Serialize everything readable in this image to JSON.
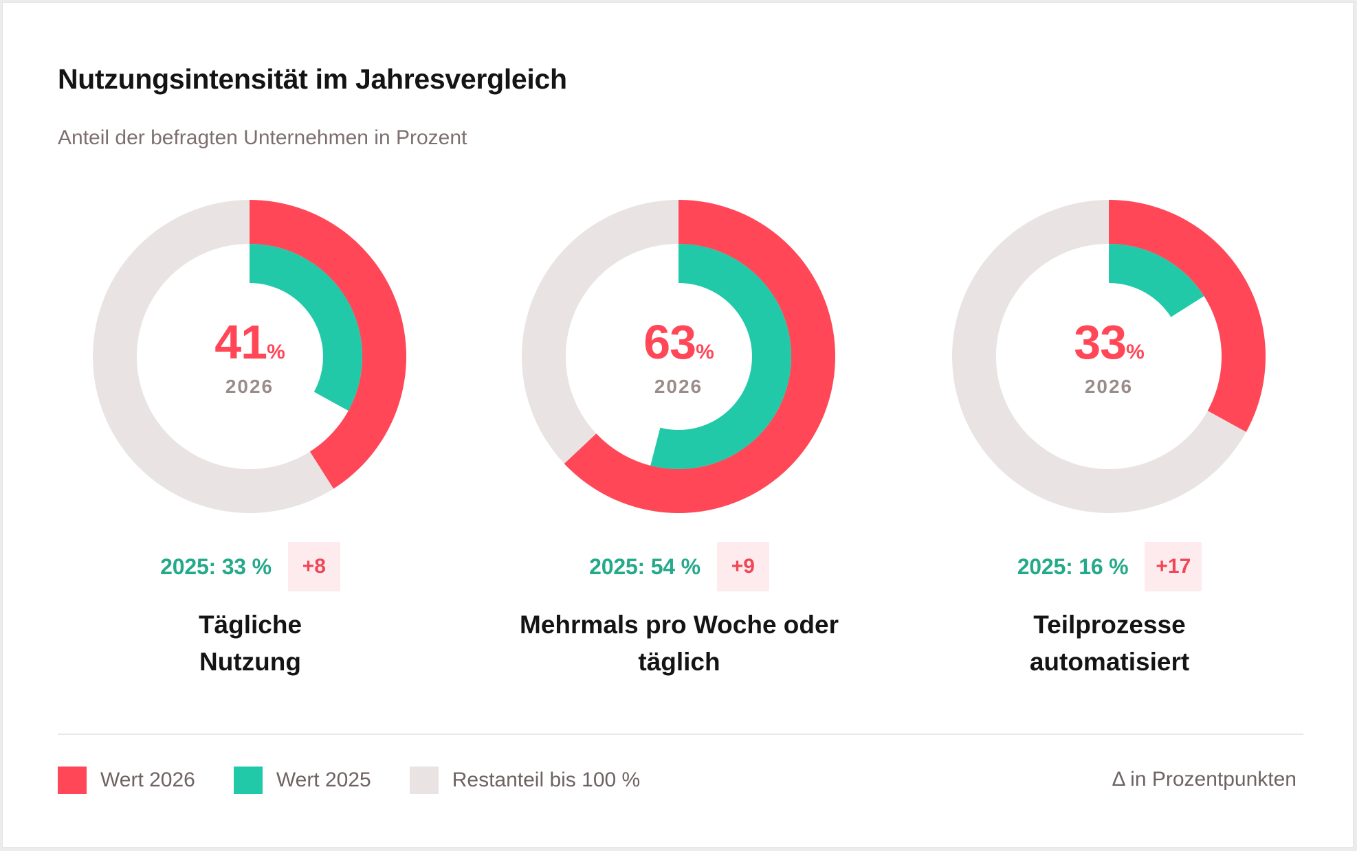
{
  "header": {
    "title": "Nutzungsintensität im Jahresvergleich",
    "subtitle": "Anteil der befragten Unternehmen in Prozent"
  },
  "colors": {
    "value_2026": "#ff4757",
    "value_2025": "#21c9a8",
    "remainder": "#e9e4e3",
    "prev_text": "#24a98a",
    "badge_bg": "#fdebed",
    "badge_text": "#f04656"
  },
  "chart_data": [
    {
      "type": "pie",
      "center_value": "41",
      "center_unit": "%",
      "center_year": "2026",
      "series": [
        {
          "name": "Wert 2026",
          "value": 41
        },
        {
          "name": "Wert 2025",
          "value": 33
        }
      ],
      "prev_label": "2025: 33 %",
      "delta": "+8",
      "category": [
        "Tägliche",
        "Nutzung"
      ]
    },
    {
      "type": "pie",
      "center_value": "63",
      "center_unit": "%",
      "center_year": "2026",
      "series": [
        {
          "name": "Wert 2026",
          "value": 63
        },
        {
          "name": "Wert 2025",
          "value": 54
        }
      ],
      "prev_label": "2025: 54 %",
      "delta": "+9",
      "category": [
        "Mehrmals pro Woche oder",
        "täglich"
      ]
    },
    {
      "type": "pie",
      "center_value": "33",
      "center_unit": "%",
      "center_year": "2026",
      "series": [
        {
          "name": "Wert 2026",
          "value": 33
        },
        {
          "name": "Wert 2025",
          "value": 16
        }
      ],
      "prev_label": "2025: 16 %",
      "delta": "+17",
      "category": [
        "Teilprozesse",
        "automatisiert"
      ]
    }
  ],
  "legend": {
    "items": [
      {
        "label": "Wert 2026",
        "color": "#ff4757"
      },
      {
        "label": "Wert 2025",
        "color": "#21c9a8"
      },
      {
        "label": "Restanteil bis 100 %",
        "color": "#e9e4e3"
      }
    ],
    "note": "Δ in Prozentpunkten"
  }
}
